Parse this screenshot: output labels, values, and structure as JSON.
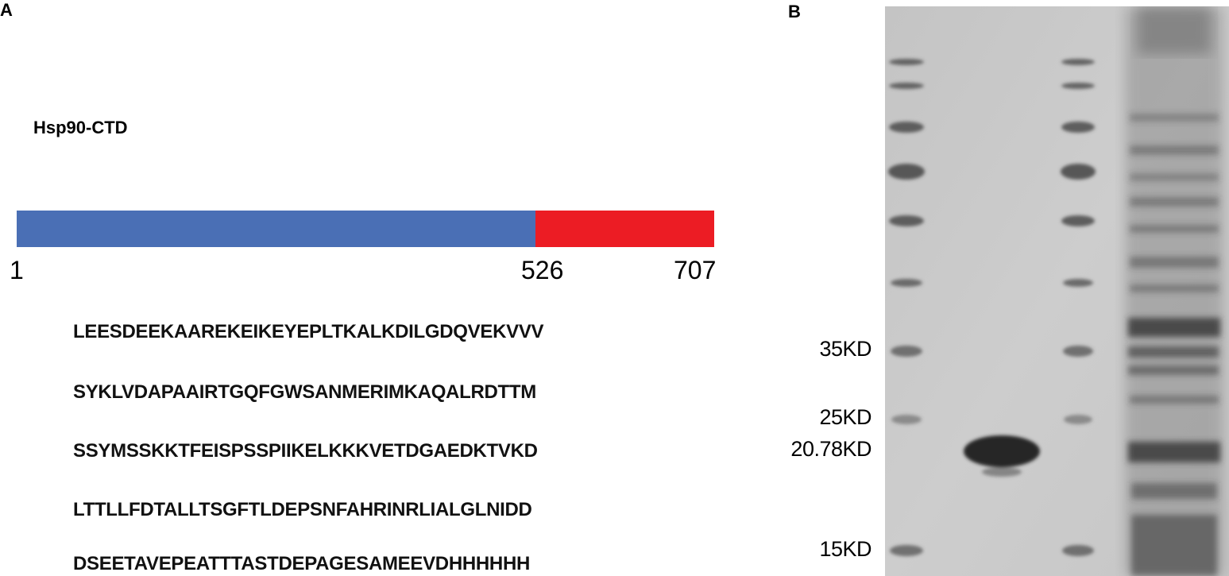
{
  "panels": {
    "a": "A",
    "b": "B"
  },
  "panel_a": {
    "construct_name": "Hsp90-CTD",
    "domain_bar": {
      "total_length": 707,
      "segments": [
        {
          "start": 1,
          "end": 526,
          "color": "#4a6fb5"
        },
        {
          "start": 526,
          "end": 707,
          "color": "#ec1c24"
        }
      ],
      "position_labels": [
        "1",
        "526",
        "707"
      ]
    },
    "sequence_lines": [
      "LEESDEEKAAREKEIKEYEPLTKALKDILGDQVEKVVV",
      "SYKLVDAPAAIRTGQFGWSANMERIMKAQALRDTTM",
      "SSYMSSKKTFEISPSSPIIKELKKKVETDGAEDKTVKD",
      "LTTLLFDTALLTSGFTLDEPSNFAHRINRLIALGLNIDD",
      "DSEETAVEPEATTTASTDEPAGESAMEEVDHHHHHH"
    ]
  },
  "panel_b": {
    "mw_labels": [
      {
        "text": "35KD",
        "kd": 35
      },
      {
        "text": "25KD",
        "kd": 25
      },
      {
        "text": "20.78KD",
        "kd": 20.78,
        "arrow": true
      },
      {
        "text": "15KD",
        "kd": 15
      }
    ],
    "arrow_color": "#e8262b"
  }
}
